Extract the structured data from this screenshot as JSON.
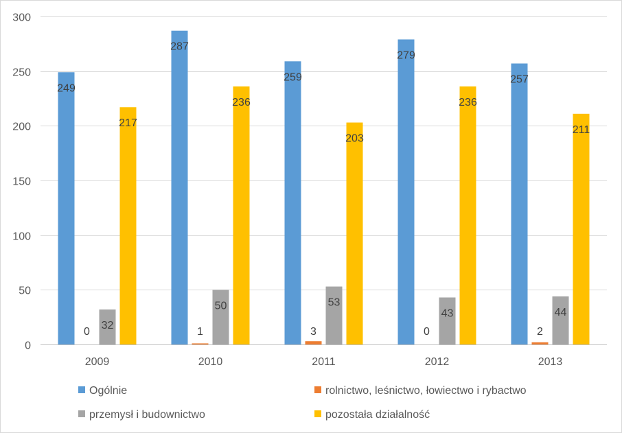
{
  "chart_data": {
    "type": "bar",
    "title": "",
    "xlabel": "",
    "ylabel": "",
    "categories": [
      "2009",
      "2010",
      "2011",
      "2012",
      "2013"
    ],
    "ylim": [
      0,
      300
    ],
    "yticks": [
      0,
      50,
      100,
      150,
      200,
      250,
      300
    ],
    "grid": true,
    "legend_position": "bottom",
    "series": [
      {
        "name": "Ogólnie",
        "color": "#5b9bd5",
        "values": [
          249,
          287,
          259,
          279,
          257
        ]
      },
      {
        "name": "rolnictwo, leśnictwo, łowiectwo i rybactwo",
        "color": "#ed7d31",
        "values": [
          0,
          1,
          3,
          0,
          2
        ]
      },
      {
        "name": "przemysł i budownictwo",
        "color": "#a5a5a5",
        "values": [
          32,
          50,
          53,
          43,
          44
        ]
      },
      {
        "name": "pozostała działalność",
        "color": "#ffc000",
        "values": [
          217,
          236,
          203,
          236,
          211
        ]
      }
    ]
  }
}
